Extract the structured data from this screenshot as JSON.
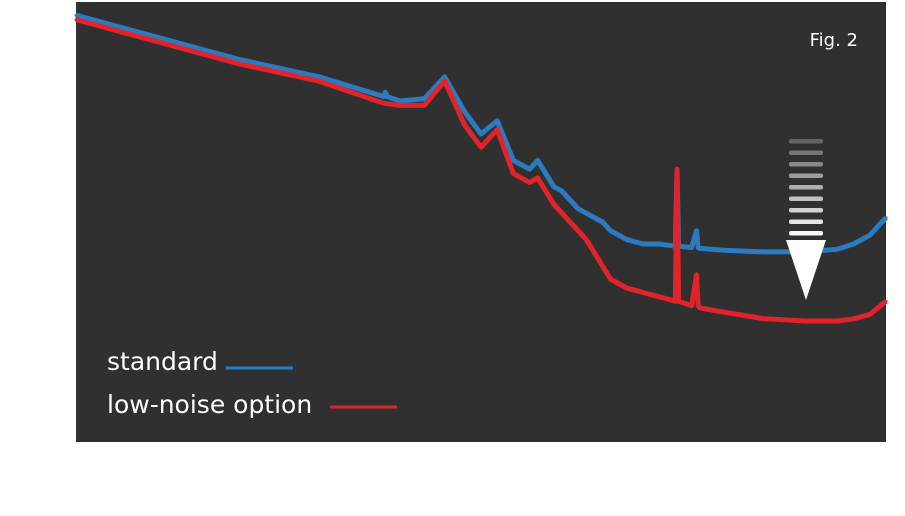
{
  "figure_label": "Fig. 2",
  "colors": {
    "background": "#303030",
    "standard": "#2b7bc0",
    "low_noise": "#e0242a",
    "arrow": "#ffffff",
    "text": "#ffffff"
  },
  "chart_data": {
    "type": "line",
    "title": "",
    "xlabel": "",
    "ylabel": "",
    "xlim": [
      0,
      100
    ],
    "ylim": [
      0,
      100
    ],
    "grid": false,
    "legend_position": "bottom-left",
    "series": [
      {
        "name": "standard",
        "color": "#2b7bc0",
        "x": [
          0,
          10,
          20,
          30,
          38,
          38.2,
          38.4,
          40,
          43,
          45.5,
          48,
          50,
          52,
          54,
          56,
          57,
          58,
          59,
          60,
          61,
          62,
          63,
          64,
          65,
          66,
          68,
          70,
          72,
          74,
          74.2,
          74.4,
          76,
          76.6,
          76.8,
          77,
          80,
          85,
          90,
          94,
          96,
          98,
          100
        ],
        "y": [
          97,
          92,
          87,
          83,
          78.5,
          79.5,
          78.5,
          77.5,
          78,
          83,
          75,
          70,
          73,
          64,
          62,
          64,
          61,
          58,
          57,
          55,
          53,
          52,
          51,
          50,
          48,
          46,
          45,
          45,
          44.5,
          62,
          44.5,
          44.2,
          48,
          44.2,
          44,
          43.6,
          43.2,
          43.2,
          43.8,
          45,
          47,
          51
        ]
      },
      {
        "name": "low-noise option",
        "color": "#e0242a",
        "x": [
          0,
          10,
          20,
          30,
          38,
          40,
          43,
          45.5,
          48,
          50,
          52,
          54,
          56,
          57,
          58,
          59,
          60,
          61,
          62,
          63,
          64,
          65,
          66,
          68,
          70,
          72,
          74,
          74.2,
          74.4,
          76,
          76.6,
          76.8,
          77,
          80,
          85,
          90,
          94,
          96,
          98,
          100
        ],
        "y": [
          96,
          91,
          86,
          82,
          77,
          76.5,
          76.5,
          82,
          72,
          67,
          71,
          61,
          59,
          60,
          57,
          54,
          52,
          50,
          48,
          46,
          43,
          40,
          37,
          35,
          34,
          33,
          32,
          62,
          32,
          31,
          38,
          31,
          30.5,
          29.5,
          28,
          27.5,
          27.5,
          28,
          29,
          32
        ]
      }
    ]
  }
}
